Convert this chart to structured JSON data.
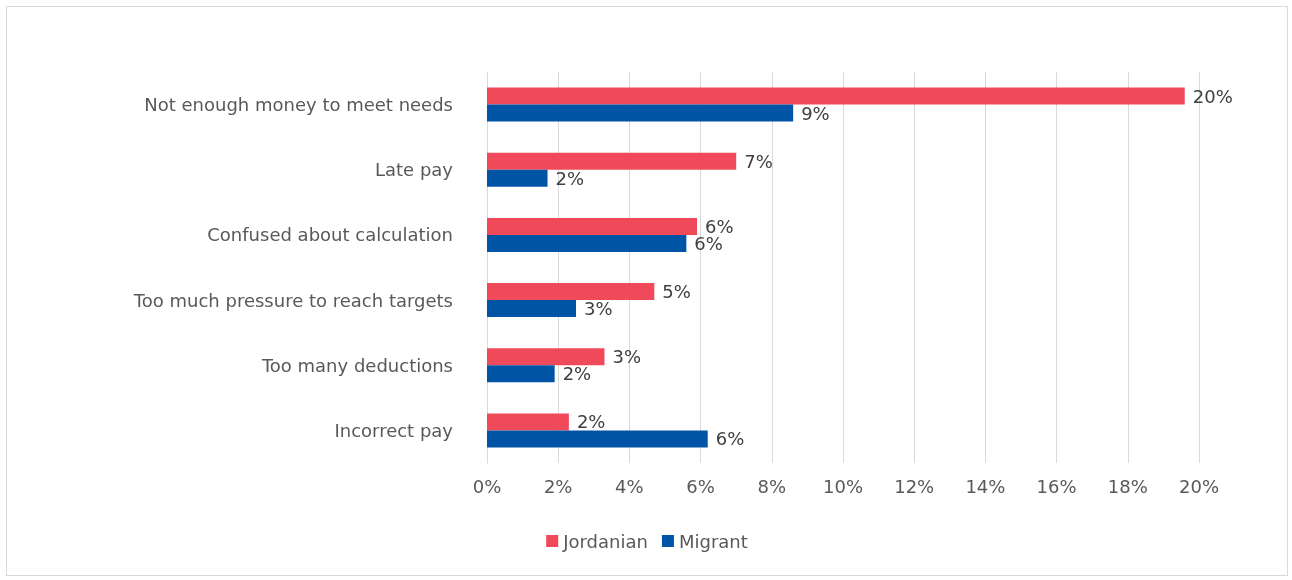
{
  "chart_data": {
    "type": "bar",
    "orientation": "horizontal",
    "categories": [
      "Not enough money to meet needs",
      "Late pay",
      "Confused about calculation",
      "Too much pressure to reach targets",
      "Too many deductions",
      "Incorrect pay"
    ],
    "series": [
      {
        "name": "Jordanian",
        "color": "#f04a5a",
        "values": [
          19.6,
          7.0,
          5.9,
          4.7,
          3.3,
          2.3
        ],
        "value_labels": [
          "20%",
          "7%",
          "6%",
          "5%",
          "3%",
          "2%"
        ]
      },
      {
        "name": "Migrant",
        "color": "#0054a6",
        "values": [
          8.6,
          1.7,
          5.6,
          2.5,
          1.9,
          6.2
        ],
        "value_labels": [
          "9%",
          "2%",
          "6%",
          "3%",
          "2%",
          "6%"
        ]
      }
    ],
    "xlim": [
      0,
      20
    ],
    "xticks": [
      {
        "value": 0,
        "label": "0%"
      },
      {
        "value": 2,
        "label": "2%"
      },
      {
        "value": 4,
        "label": "4%"
      },
      {
        "value": 6,
        "label": "6%"
      },
      {
        "value": 8,
        "label": "8%"
      },
      {
        "value": 10,
        "label": "10%"
      },
      {
        "value": 12,
        "label": "12%"
      },
      {
        "value": 14,
        "label": "14%"
      },
      {
        "value": 16,
        "label": "16%"
      },
      {
        "value": 18,
        "label": "18%"
      },
      {
        "value": 20,
        "label": "20%"
      }
    ],
    "grid": "x",
    "legend": "bottom"
  }
}
